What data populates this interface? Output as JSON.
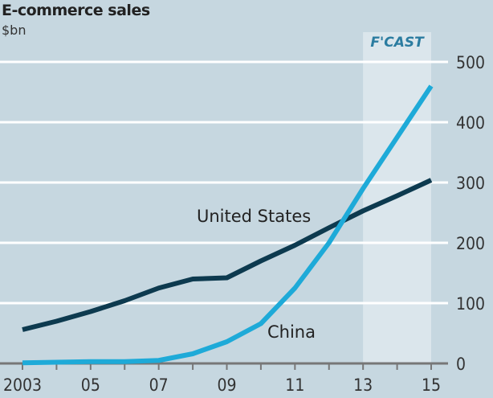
{
  "chart_data": {
    "type": "line",
    "title": "E-commerce sales",
    "ylabel": "$bn",
    "xlabel": "",
    "x": [
      2003,
      2004,
      2005,
      2006,
      2007,
      2008,
      2009,
      2010,
      2011,
      2012,
      2013,
      2014,
      2015
    ],
    "xtick_values": [
      2003,
      2005,
      2007,
      2009,
      2011,
      2013,
      2015
    ],
    "xtick_labels": [
      "2003",
      "05",
      "07",
      "09",
      "11",
      "13",
      "15"
    ],
    "ylim": [
      0,
      500
    ],
    "yticks": [
      0,
      100,
      200,
      300,
      400,
      500
    ],
    "ytick_labels": [
      "0",
      "100",
      "200",
      "300",
      "400",
      "500"
    ],
    "grid": true,
    "forecast_region": {
      "label": "F'CAST",
      "from": 2013,
      "to": 2015
    },
    "series": [
      {
        "name": "United States",
        "color": "#0d3a4f",
        "values": [
          56,
          70,
          86,
          104,
          125,
          140,
          142,
          170,
          196,
          225,
          253,
          278,
          304
        ]
      },
      {
        "name": "China",
        "color": "#1eaad8",
        "values": [
          1,
          2,
          3,
          3,
          5,
          16,
          36,
          66,
          125,
          200,
          290,
          375,
          460
        ]
      }
    ]
  }
}
